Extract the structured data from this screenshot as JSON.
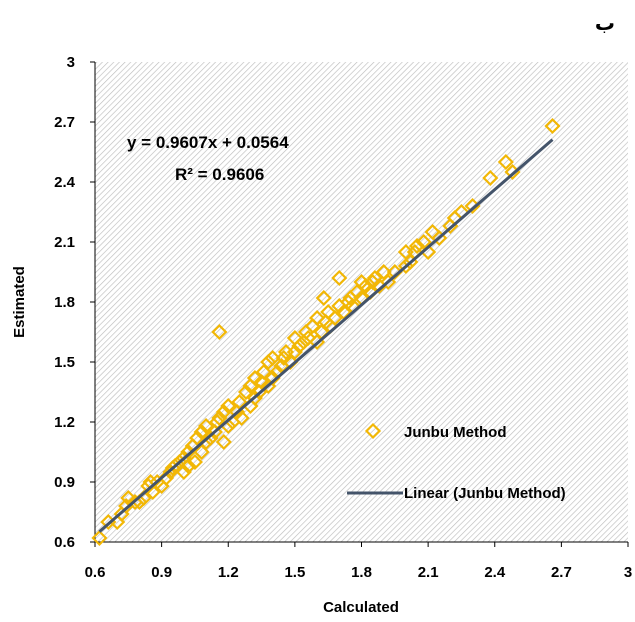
{
  "corner_label": "ب",
  "equation": "y = 0.9607x + 0.0564",
  "r_squared": "R² = 0.9606",
  "colors": {
    "points": "#F2B705",
    "trendline": "#44546A",
    "hatch": "#bdbdbd"
  },
  "chart_data": {
    "type": "scatter",
    "xlabel": "Calculated",
    "ylabel": "Estimated",
    "xlim": [
      0.6,
      3
    ],
    "ylim": [
      0.6,
      3
    ],
    "xticks": [
      "0.6",
      "0.9",
      "1.2",
      "1.5",
      "1.8",
      "2.1",
      "2.4",
      "2.7",
      "3"
    ],
    "yticks": [
      "0.6",
      "0.9",
      "1.2",
      "1.5",
      "1.8",
      "2.1",
      "2.4",
      "2.7",
      "3"
    ],
    "grid": false,
    "legend_position": "bottom-right",
    "series": [
      {
        "name": "Junbu Method",
        "marker": "diamond",
        "x": [
          0.62,
          0.66,
          0.7,
          0.72,
          0.74,
          0.75,
          0.78,
          0.8,
          0.82,
          0.84,
          0.85,
          0.86,
          0.88,
          0.9,
          0.92,
          0.94,
          0.95,
          0.96,
          0.98,
          1.0,
          1.0,
          1.02,
          1.02,
          1.04,
          1.05,
          1.06,
          1.08,
          1.08,
          1.1,
          1.1,
          1.12,
          1.14,
          1.15,
          1.16,
          1.16,
          1.18,
          1.18,
          1.2,
          1.2,
          1.22,
          1.24,
          1.25,
          1.26,
          1.28,
          1.3,
          1.3,
          1.32,
          1.32,
          1.34,
          1.35,
          1.36,
          1.38,
          1.38,
          1.4,
          1.4,
          1.42,
          1.44,
          1.45,
          1.46,
          1.48,
          1.5,
          1.5,
          1.52,
          1.54,
          1.55,
          1.56,
          1.58,
          1.6,
          1.6,
          1.62,
          1.63,
          1.64,
          1.65,
          1.66,
          1.68,
          1.7,
          1.7,
          1.72,
          1.74,
          1.75,
          1.76,
          1.78,
          1.8,
          1.8,
          1.82,
          1.84,
          1.85,
          1.86,
          1.88,
          1.9,
          1.92,
          1.95,
          2.0,
          2.0,
          2.02,
          2.04,
          2.05,
          2.08,
          2.1,
          2.12,
          2.15,
          2.2,
          2.22,
          2.25,
          2.3,
          2.38,
          2.45,
          2.48,
          2.66
        ],
        "y": [
          0.62,
          0.7,
          0.7,
          0.74,
          0.78,
          0.82,
          0.8,
          0.8,
          0.82,
          0.88,
          0.9,
          0.85,
          0.9,
          0.88,
          0.92,
          0.95,
          0.97,
          0.98,
          1.0,
          1.02,
          0.95,
          0.98,
          1.05,
          1.08,
          1.0,
          1.12,
          1.05,
          1.15,
          1.1,
          1.18,
          1.12,
          1.15,
          1.2,
          1.22,
          1.65,
          1.1,
          1.25,
          1.18,
          1.28,
          1.2,
          1.25,
          1.3,
          1.22,
          1.35,
          1.28,
          1.38,
          1.32,
          1.42,
          1.35,
          1.4,
          1.45,
          1.38,
          1.5,
          1.42,
          1.52,
          1.45,
          1.48,
          1.52,
          1.55,
          1.5,
          1.55,
          1.62,
          1.58,
          1.6,
          1.65,
          1.62,
          1.68,
          1.6,
          1.72,
          1.65,
          1.82,
          1.7,
          1.75,
          1.68,
          1.72,
          1.78,
          1.92,
          1.75,
          1.8,
          1.82,
          1.78,
          1.85,
          1.82,
          1.9,
          1.88,
          1.85,
          1.9,
          1.92,
          1.88,
          1.95,
          1.9,
          1.95,
          1.98,
          2.05,
          2.0,
          2.05,
          2.08,
          2.1,
          2.05,
          2.15,
          2.12,
          2.18,
          2.22,
          2.25,
          2.28,
          2.42,
          2.5,
          2.45,
          2.68
        ]
      },
      {
        "name": "Linear (Junbu Method)",
        "type": "line",
        "slope": 0.9607,
        "intercept": 0.0564,
        "x_range": [
          0.62,
          2.66
        ]
      }
    ]
  }
}
